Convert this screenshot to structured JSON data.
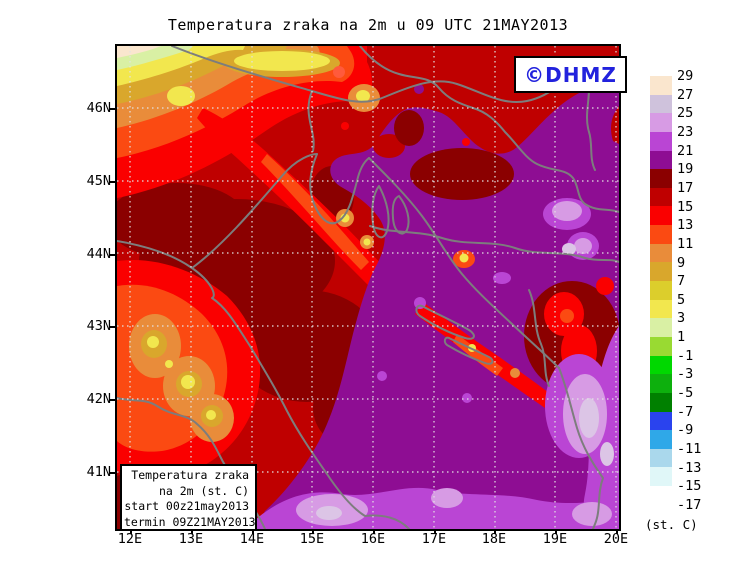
{
  "title": "Temperatura zraka na 2m u 09 UTC 21MAY2013",
  "logo": {
    "label": "©DHMZ",
    "color": "#2222DD"
  },
  "axes": {
    "x_labels": [
      "12E",
      "13E",
      "14E",
      "15E",
      "16E",
      "17E",
      "18E",
      "19E",
      "20E"
    ],
    "y_labels": [
      "46N",
      "45N",
      "44N",
      "43N",
      "42N",
      "41N"
    ]
  },
  "legend": {
    "unit_label": "(st. C)",
    "boundary_labels": [
      "29",
      "27",
      "25",
      "23",
      "21",
      "19",
      "17",
      "15",
      "13",
      "11",
      "9",
      "7",
      "5",
      "3",
      "1",
      "-1",
      "-3",
      "-5",
      "-7",
      "-9",
      "-11",
      "-13",
      "-15",
      "-17"
    ],
    "cell_colors": [
      "#FAE6CE",
      "#CFC2DC",
      "#D79BE4",
      "#BA45D4",
      "#8E0D93",
      "#8B0000",
      "#BF0000",
      "#FA0000",
      "#FB4A12",
      "#E98C3A",
      "#D9A72C",
      "#DCCE2C",
      "#F2E74E",
      "#D9F0A4",
      "#99DA32",
      "#00D800",
      "#0DB00D",
      "#008000",
      "#2A43EE",
      "#2FA8E8",
      "#AAD8EC",
      "#E0F7F8",
      "#FFFFFF"
    ]
  },
  "info_box": {
    "lines": [
      "Temperatura zraka",
      "na 2m (st. C)",
      "start 00z21may2013",
      "termin 09Z21MAY2013"
    ]
  }
}
